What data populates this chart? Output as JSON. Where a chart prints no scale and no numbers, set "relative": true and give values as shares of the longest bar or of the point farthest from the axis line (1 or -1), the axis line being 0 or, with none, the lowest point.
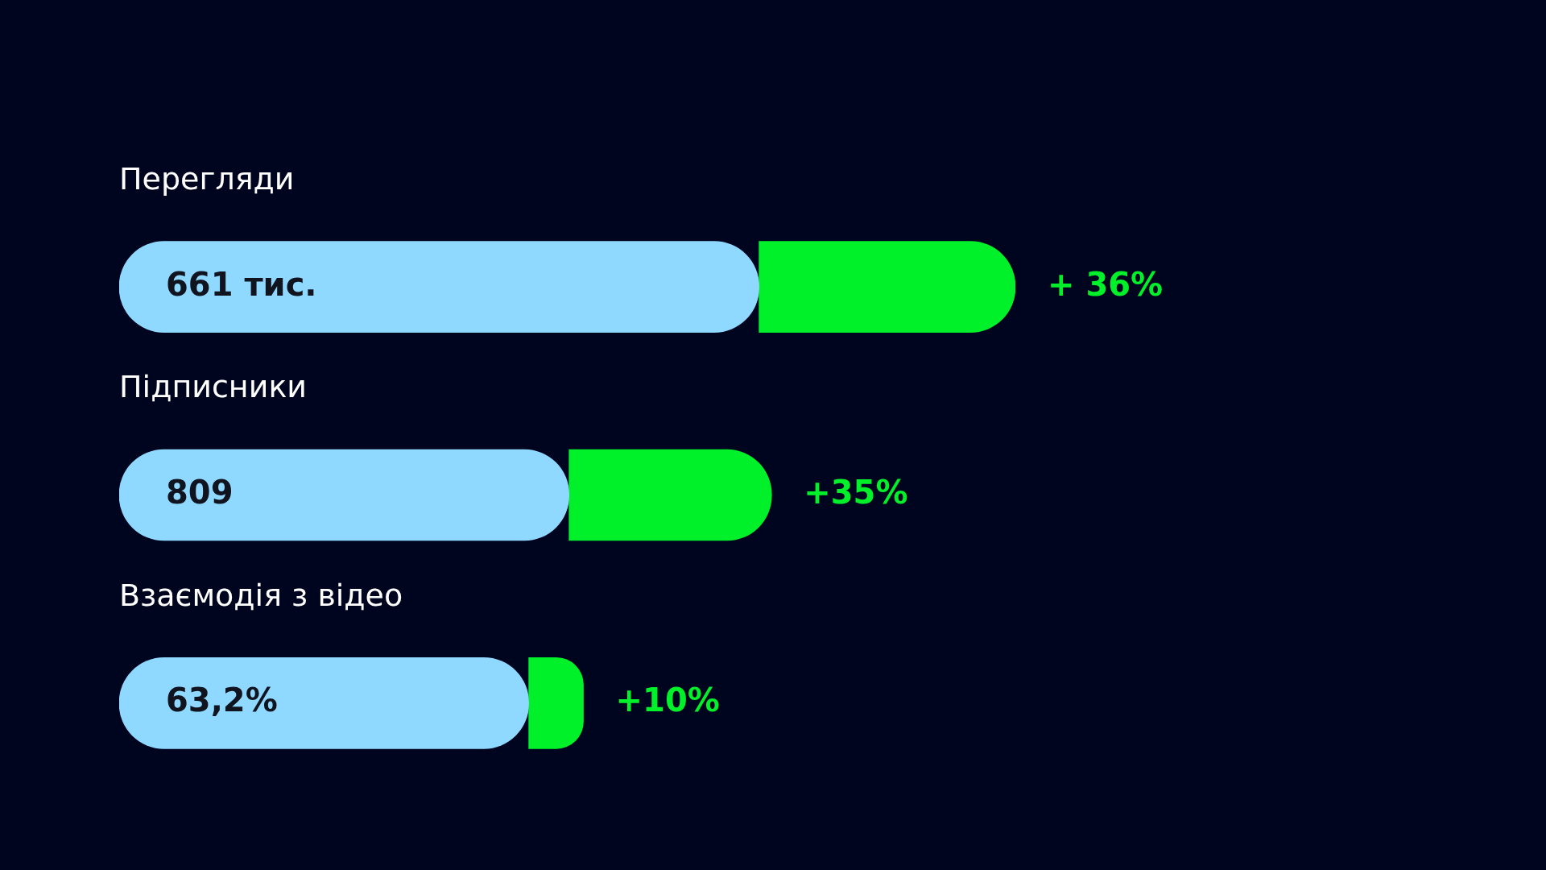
{
  "chart_data": {
    "type": "bar",
    "orientation": "horizontal",
    "stacked": true,
    "relative": true,
    "categories": [
      "Перегляди",
      "Підписники",
      "Взаємодія з відео"
    ],
    "series": [
      {
        "color": "#8fd8ff",
        "values": [
          0.714,
          0.502,
          0.457
        ]
      },
      {
        "color": "#00f02a",
        "values": [
          0.286,
          0.226,
          0.061
        ]
      }
    ],
    "annotations": [
      "661 тис.",
      "809",
      "63,2%",
      "+ 36%",
      "+35%",
      "+10%"
    ]
  }
}
